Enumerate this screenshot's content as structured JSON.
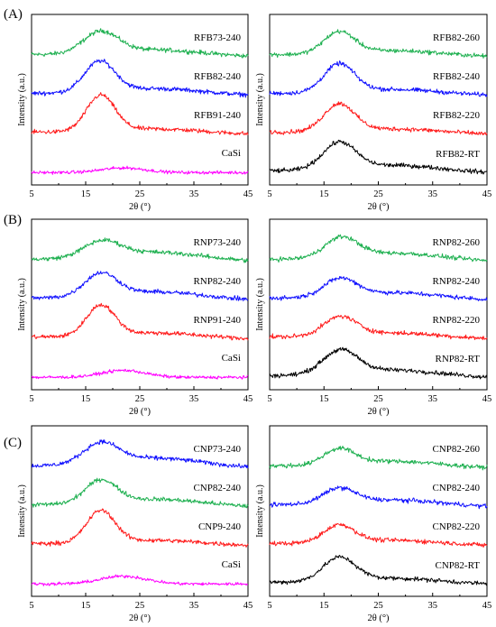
{
  "figure": {
    "row_labels": [
      "(A)",
      "(B)",
      "(C)"
    ]
  },
  "colors": {
    "green": "#1eb050",
    "blue": "#1010ff",
    "red": "#ff1a1a",
    "black": "#000000",
    "magenta": "#ff00ff"
  },
  "chart_data": [
    {
      "id": "A-left",
      "row": 0,
      "col": 0,
      "type": "line",
      "xlabel": "2θ (°)",
      "ylabel": "Intensity (a.u.)",
      "xlim": [
        5,
        45
      ],
      "xticks": [
        5,
        15,
        25,
        35,
        45
      ],
      "yticks": false,
      "grid": false,
      "series": [
        {
          "name": "RFB73-240",
          "color": "#1eb050",
          "offset": 3.1,
          "peak_x": 17.8,
          "peak_h": 0.55,
          "width": 3.2,
          "broad": 0.16
        },
        {
          "name": "RFB82-240",
          "color": "#1010ff",
          "offset": 2.1,
          "peak_x": 17.6,
          "peak_h": 0.78,
          "width": 2.8,
          "broad": 0.16
        },
        {
          "name": "RFB91-240",
          "color": "#ff1a1a",
          "offset": 1.1,
          "peak_x": 17.8,
          "peak_h": 0.92,
          "width": 2.6,
          "broad": 0.12
        },
        {
          "name": "CaSi",
          "color": "#ff00ff",
          "offset": 0.12,
          "peak_x": 22.0,
          "peak_h": 0.12,
          "width": 4.0,
          "broad": 0.0
        }
      ]
    },
    {
      "id": "A-right",
      "row": 0,
      "col": 1,
      "type": "line",
      "xlabel": "2θ (°)",
      "ylabel": "Intensity (a.u.)",
      "xlim": [
        5,
        45
      ],
      "xticks": [
        5,
        15,
        25,
        35,
        45
      ],
      "yticks": false,
      "grid": false,
      "series": [
        {
          "name": "RFB82-260",
          "color": "#1eb050",
          "offset": 3.1,
          "peak_x": 17.8,
          "peak_h": 0.55,
          "width": 2.8,
          "broad": 0.14
        },
        {
          "name": "RFB82-240",
          "color": "#1010ff",
          "offset": 2.1,
          "peak_x": 17.8,
          "peak_h": 0.72,
          "width": 2.8,
          "broad": 0.14
        },
        {
          "name": "RFB82-220",
          "color": "#ff1a1a",
          "offset": 1.1,
          "peak_x": 17.8,
          "peak_h": 0.7,
          "width": 2.8,
          "broad": 0.12
        },
        {
          "name": "RFB82-RT",
          "color": "#000000",
          "offset": 0.1,
          "peak_x": 17.8,
          "peak_h": 0.68,
          "width": 3.0,
          "broad": 0.18
        }
      ]
    },
    {
      "id": "B-left",
      "row": 1,
      "col": 0,
      "type": "line",
      "xlabel": "2θ (°)",
      "ylabel": "Intensity (a.u.)",
      "xlim": [
        5,
        45
      ],
      "xticks": [
        5,
        15,
        25,
        35,
        45
      ],
      "yticks": false,
      "grid": false,
      "series": [
        {
          "name": "RNP73-240",
          "color": "#1eb050",
          "offset": 3.1,
          "peak_x": 18.0,
          "peak_h": 0.4,
          "width": 3.4,
          "broad": 0.22
        },
        {
          "name": "RNP82-240",
          "color": "#1010ff",
          "offset": 2.1,
          "peak_x": 17.8,
          "peak_h": 0.58,
          "width": 3.0,
          "broad": 0.2
        },
        {
          "name": "RNP91-240",
          "color": "#ff1a1a",
          "offset": 1.1,
          "peak_x": 17.8,
          "peak_h": 0.78,
          "width": 2.6,
          "broad": 0.14
        },
        {
          "name": "CaSi",
          "color": "#ff00ff",
          "offset": 0.12,
          "peak_x": 22.0,
          "peak_h": 0.18,
          "width": 4.0,
          "broad": 0.0
        }
      ]
    },
    {
      "id": "B-right",
      "row": 1,
      "col": 1,
      "type": "line",
      "xlabel": "2θ (°)",
      "ylabel": "Intensity (a.u.)",
      "xlim": [
        5,
        45
      ],
      "xticks": [
        5,
        15,
        25,
        35,
        45
      ],
      "yticks": false,
      "grid": false,
      "series": [
        {
          "name": "RNP82-260",
          "color": "#1eb050",
          "offset": 3.1,
          "peak_x": 18.2,
          "peak_h": 0.5,
          "width": 3.0,
          "broad": 0.2
        },
        {
          "name": "RNP82-240",
          "color": "#1010ff",
          "offset": 2.1,
          "peak_x": 18.0,
          "peak_h": 0.45,
          "width": 3.0,
          "broad": 0.18
        },
        {
          "name": "RNP82-220",
          "color": "#ff1a1a",
          "offset": 1.1,
          "peak_x": 18.0,
          "peak_h": 0.48,
          "width": 3.0,
          "broad": 0.14
        },
        {
          "name": "RNP82-RT",
          "color": "#000000",
          "offset": 0.1,
          "peak_x": 18.0,
          "peak_h": 0.6,
          "width": 3.2,
          "broad": 0.18
        }
      ]
    },
    {
      "id": "C-left",
      "row": 2,
      "col": 0,
      "type": "line",
      "xlabel": "2θ (°)",
      "ylabel": "Intensity (a.u.)",
      "xlim": [
        5,
        45
      ],
      "xticks": [
        5,
        15,
        25,
        35,
        45
      ],
      "yticks": false,
      "grid": false,
      "series": [
        {
          "name": "CNP73-240",
          "color": "#1010ff",
          "offset": 3.1,
          "peak_x": 17.8,
          "peak_h": 0.52,
          "width": 3.2,
          "broad": 0.24
        },
        {
          "name": "CNP82-240",
          "color": "#1eb050",
          "offset": 2.1,
          "peak_x": 17.8,
          "peak_h": 0.58,
          "width": 2.9,
          "broad": 0.18
        },
        {
          "name": "CNP9-240",
          "color": "#ff1a1a",
          "offset": 1.1,
          "peak_x": 17.8,
          "peak_h": 0.82,
          "width": 2.6,
          "broad": 0.12
        },
        {
          "name": "CaSi",
          "color": "#ff00ff",
          "offset": 0.12,
          "peak_x": 22.0,
          "peak_h": 0.2,
          "width": 4.2,
          "broad": 0.0
        }
      ]
    },
    {
      "id": "C-right",
      "row": 2,
      "col": 1,
      "type": "line",
      "xlabel": "2θ (°)",
      "ylabel": "Intensity (a.u.)",
      "xlim": [
        5,
        45
      ],
      "xticks": [
        5,
        15,
        25,
        35,
        45
      ],
      "yticks": false,
      "grid": false,
      "series": [
        {
          "name": "CNP82-260",
          "color": "#1eb050",
          "offset": 3.1,
          "peak_x": 17.8,
          "peak_h": 0.4,
          "width": 2.8,
          "broad": 0.16
        },
        {
          "name": "CNP82-240",
          "color": "#1010ff",
          "offset": 2.1,
          "peak_x": 17.8,
          "peak_h": 0.38,
          "width": 2.9,
          "broad": 0.16
        },
        {
          "name": "CNP82-220",
          "color": "#ff1a1a",
          "offset": 1.1,
          "peak_x": 17.8,
          "peak_h": 0.45,
          "width": 2.8,
          "broad": 0.12
        },
        {
          "name": "CNP82-RT",
          "color": "#000000",
          "offset": 0.1,
          "peak_x": 17.8,
          "peak_h": 0.6,
          "width": 3.0,
          "broad": 0.14
        }
      ]
    }
  ]
}
